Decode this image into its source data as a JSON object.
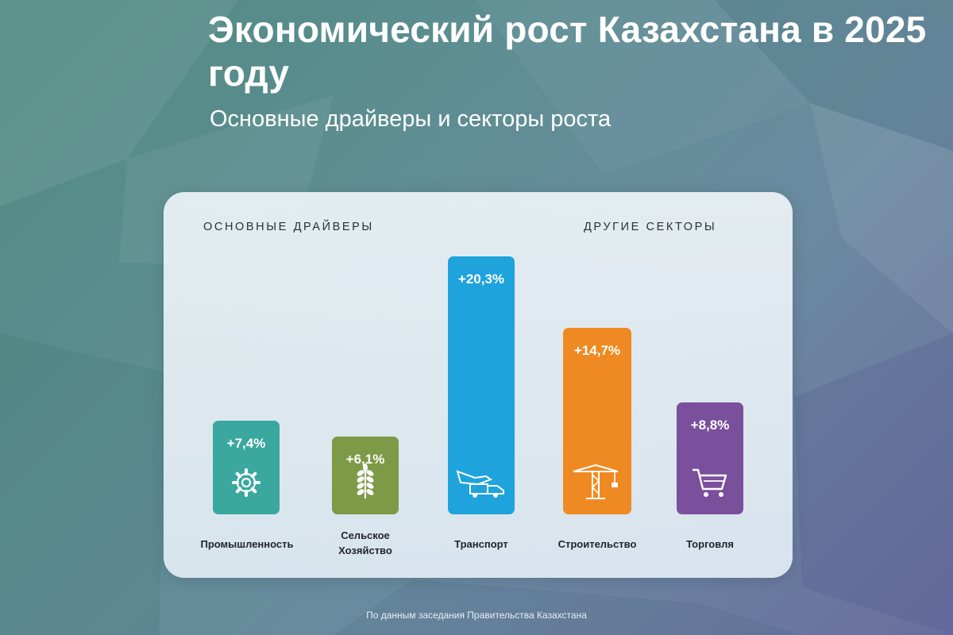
{
  "header": {
    "title": "Экономический рост Казахстана в 2025 году",
    "subtitle": "Основные драйверы и секторы роста"
  },
  "sections": {
    "main_drivers": "ОСНОВНЫЕ ДРАЙВЕРЫ",
    "other_sectors": "ДРУГИЕ СЕКТОРЫ"
  },
  "footer": {
    "source": "По данным заседания Правительства Казахстана"
  },
  "colors": {
    "industry": "#3aa89f",
    "agriculture": "#7d9a46",
    "transport": "#1ea3dc",
    "construction": "#ef8a22",
    "trade": "#7a4f9c"
  },
  "chart_data": {
    "type": "bar",
    "categories": [
      "Промышленность",
      "Сельское\nХозяйство",
      "Транспорт",
      "Строительство",
      "Торговля"
    ],
    "values": [
      7.4,
      6.1,
      20.3,
      14.7,
      8.8
    ],
    "value_labels": [
      "+7,4%",
      "+6,1%",
      "+20,3%",
      "+14,7%",
      "+8,8%"
    ],
    "icons": [
      "gear-icon",
      "wheat-icon",
      "truck-plane-icon",
      "crane-icon",
      "cart-icon"
    ],
    "bar_colors": [
      "#3aa89f",
      "#7d9a46",
      "#1ea3dc",
      "#ef8a22",
      "#7a4f9c"
    ],
    "groups": [
      {
        "label": "ОСНОВНЫЕ ДРАЙВЕРЫ",
        "categories": [
          "Промышленность",
          "Сельское\nХозяйство"
        ]
      },
      {
        "label": "ДРУГИЕ СЕКТОРЫ",
        "categories": [
          "Транспорт",
          "Строительство",
          "Торговля"
        ]
      }
    ],
    "title": "Экономический рост Казахстана в 2025 году",
    "subtitle": "Основные драйверы и секторы роста",
    "xlabel": "",
    "ylabel": "",
    "grid": false,
    "legend": "none"
  }
}
